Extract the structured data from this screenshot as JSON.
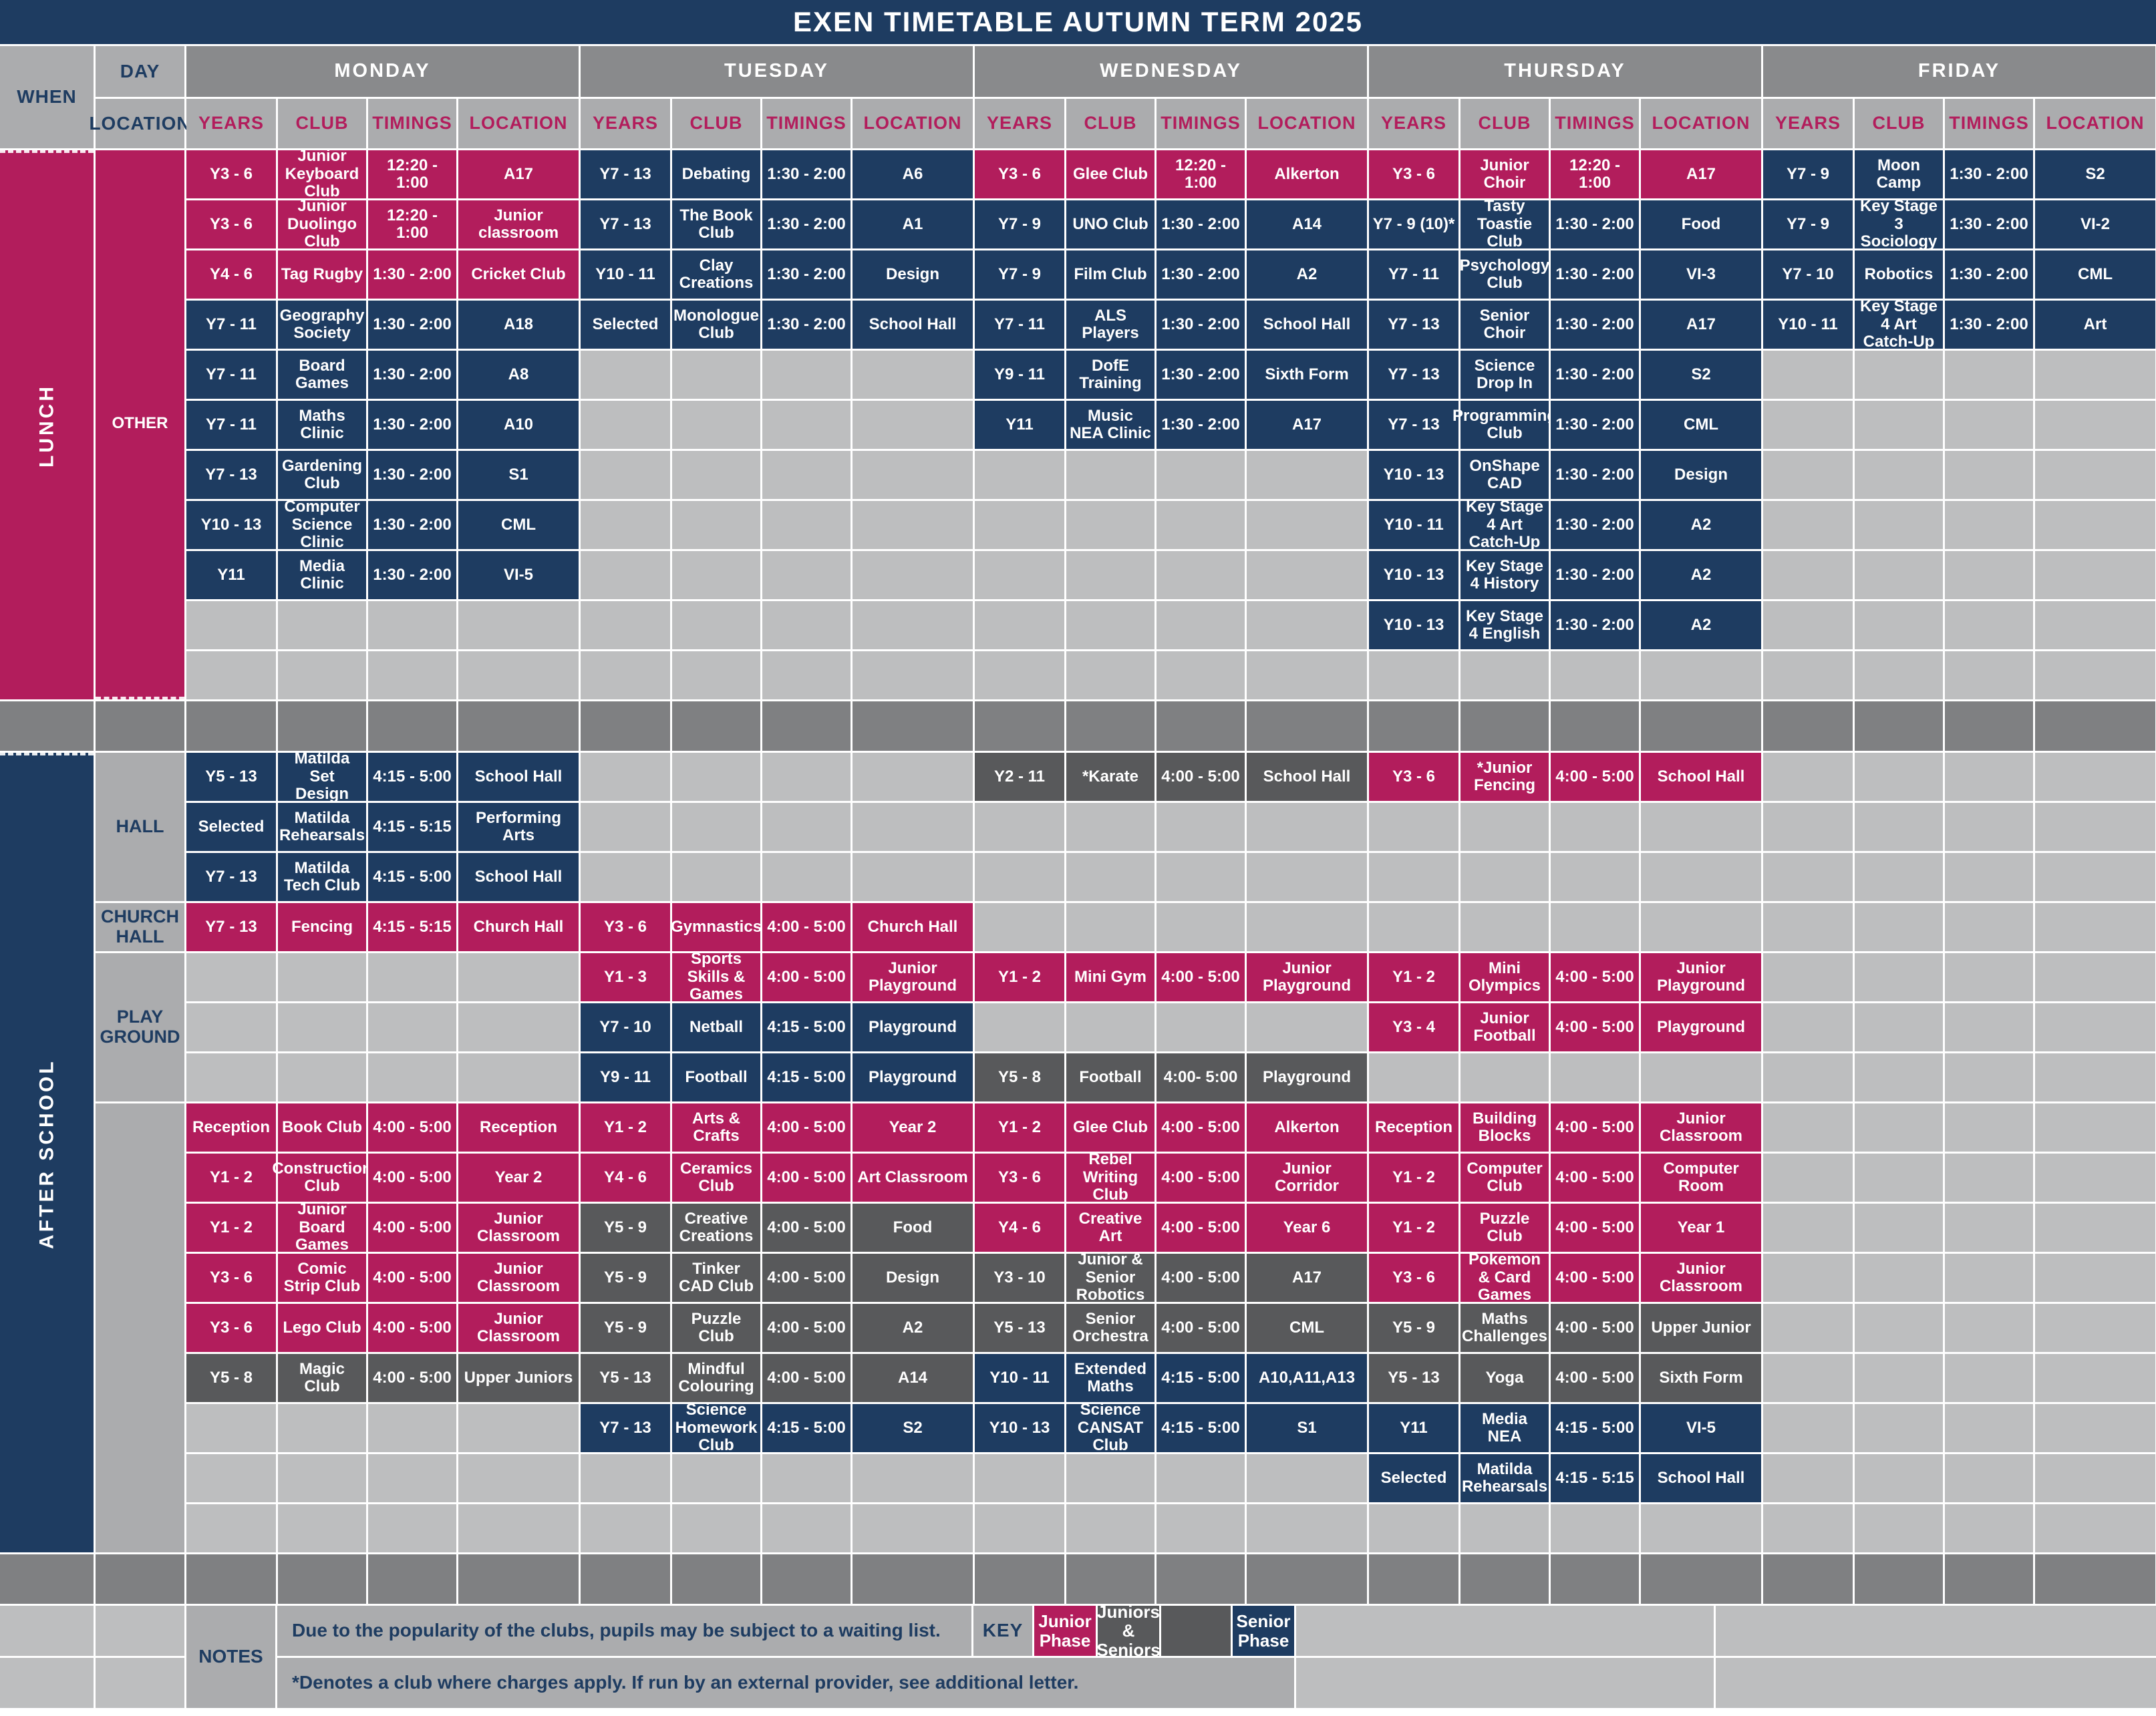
{
  "title": "EXEN TIMETABLE AUTUMN TERM 2025",
  "colors": {
    "navy_senior_phase": "#1e3c61",
    "crimson_junior_phase": "#b21d5c",
    "gray_juniors_and_seniors": "#58595b",
    "light_gray_empty": "#bdbebf",
    "header_gray": "#898a8c",
    "label_gray": "#abacae"
  },
  "headers": {
    "when": "WHEN",
    "day": "DAY",
    "location": "LOCATION",
    "days": [
      "MONDAY",
      "TUESDAY",
      "WEDNESDAY",
      "THURSDAY",
      "FRIDAY"
    ],
    "sub": [
      "YEARS",
      "CLUB",
      "TIMINGS",
      "LOCATION"
    ]
  },
  "sections": [
    {
      "id": "lunch",
      "when_label": "LUNCH",
      "when_phase": "junior",
      "groups": [
        {
          "label": "OTHER",
          "style": "junior",
          "span": 11
        }
      ],
      "entries": [
        {
          "day": 0,
          "row": 0,
          "phase": "junior",
          "years": "Y3 - 6",
          "club": "Junior Keyboard Club",
          "timings": "12:20 - 1:00",
          "location": "A17"
        },
        {
          "day": 0,
          "row": 1,
          "phase": "junior",
          "years": "Y3 - 6",
          "club": "Junior Duolingo Club",
          "timings": "12:20 - 1:00",
          "location": "Junior classroom"
        },
        {
          "day": 0,
          "row": 2,
          "phase": "junior",
          "years": "Y4 - 6",
          "club": "Tag Rugby",
          "timings": "1:30 - 2:00",
          "location": "Cricket Club"
        },
        {
          "day": 0,
          "row": 3,
          "phase": "senior",
          "years": "Y7 - 11",
          "club": "Geography Society",
          "timings": "1:30 - 2:00",
          "location": "A18"
        },
        {
          "day": 0,
          "row": 4,
          "phase": "senior",
          "years": "Y7 - 11",
          "club": "Board Games",
          "timings": "1:30 - 2:00",
          "location": "A8"
        },
        {
          "day": 0,
          "row": 5,
          "phase": "senior",
          "years": "Y7 - 11",
          "club": "Maths Clinic",
          "timings": "1:30 - 2:00",
          "location": "A10"
        },
        {
          "day": 0,
          "row": 6,
          "phase": "senior",
          "years": "Y7 - 13",
          "club": "Gardening Club",
          "timings": "1:30 - 2:00",
          "location": "S1"
        },
        {
          "day": 0,
          "row": 7,
          "phase": "senior",
          "years": "Y10 - 13",
          "club": "Computer Science Clinic",
          "timings": "1:30 - 2:00",
          "location": "CML"
        },
        {
          "day": 0,
          "row": 8,
          "phase": "senior",
          "years": "Y11",
          "club": "Media Clinic",
          "timings": "1:30 - 2:00",
          "location": "VI-5"
        },
        {
          "day": 1,
          "row": 0,
          "phase": "senior",
          "years": "Y7 - 13",
          "club": "Debating",
          "timings": "1:30 - 2:00",
          "location": "A6"
        },
        {
          "day": 1,
          "row": 1,
          "phase": "senior",
          "years": "Y7 - 13",
          "club": "The Book Club",
          "timings": "1:30 - 2:00",
          "location": "A1"
        },
        {
          "day": 1,
          "row": 2,
          "phase": "senior",
          "years": "Y10 - 11",
          "club": "Clay Creations",
          "timings": "1:30 - 2:00",
          "location": "Design"
        },
        {
          "day": 1,
          "row": 3,
          "phase": "senior",
          "years": "Selected",
          "club": "Monologue Club",
          "timings": "1:30 - 2:00",
          "location": "School Hall"
        },
        {
          "day": 2,
          "row": 0,
          "phase": "junior",
          "years": "Y3 - 6",
          "club": "Glee Club",
          "timings": "12:20 - 1:00",
          "location": "Alkerton"
        },
        {
          "day": 2,
          "row": 1,
          "phase": "senior",
          "years": "Y7 - 9",
          "club": "UNO Club",
          "timings": "1:30 - 2:00",
          "location": "A14"
        },
        {
          "day": 2,
          "row": 2,
          "phase": "senior",
          "years": "Y7 - 9",
          "club": "Film Club",
          "timings": "1:30 - 2:00",
          "location": "A2"
        },
        {
          "day": 2,
          "row": 3,
          "phase": "senior",
          "years": "Y7 - 11",
          "club": "ALS Players",
          "timings": "1:30 - 2:00",
          "location": "School Hall"
        },
        {
          "day": 2,
          "row": 4,
          "phase": "senior",
          "years": "Y9 - 11",
          "club": "DofE Training",
          "timings": "1:30 - 2:00",
          "location": "Sixth Form"
        },
        {
          "day": 2,
          "row": 5,
          "phase": "senior",
          "years": "Y11",
          "club": "Music NEA Clinic",
          "timings": "1:30 - 2:00",
          "location": "A17"
        },
        {
          "day": 3,
          "row": 0,
          "phase": "junior",
          "years": "Y3 - 6",
          "club": "Junior Choir",
          "timings": "12:20 - 1:00",
          "location": "A17"
        },
        {
          "day": 3,
          "row": 1,
          "phase": "senior",
          "years": "Y7 - 9 (10)*",
          "club": "Tasty Toastie Club",
          "timings": "1:30 - 2:00",
          "location": "Food"
        },
        {
          "day": 3,
          "row": 2,
          "phase": "senior",
          "years": "Y7 - 11",
          "club": "Psychology Club",
          "timings": "1:30 - 2:00",
          "location": "VI-3"
        },
        {
          "day": 3,
          "row": 3,
          "phase": "senior",
          "years": "Y7 - 13",
          "club": "Senior Choir",
          "timings": "1:30 - 2:00",
          "location": "A17"
        },
        {
          "day": 3,
          "row": 4,
          "phase": "senior",
          "years": "Y7 - 13",
          "club": "Science Drop In",
          "timings": "1:30 - 2:00",
          "location": "S2"
        },
        {
          "day": 3,
          "row": 5,
          "phase": "senior",
          "years": "Y7 - 13",
          "club": "Programming Club",
          "timings": "1:30 - 2:00",
          "location": "CML"
        },
        {
          "day": 3,
          "row": 6,
          "phase": "senior",
          "years": "Y10 - 13",
          "club": "OnShape CAD",
          "timings": "1:30 - 2:00",
          "location": "Design"
        },
        {
          "day": 3,
          "row": 7,
          "phase": "senior",
          "years": "Y10 - 11",
          "club": "Key Stage 4 Art Catch-Up",
          "timings": "1:30 - 2:00",
          "location": "A2"
        },
        {
          "day": 3,
          "row": 8,
          "phase": "senior",
          "years": "Y10 - 13",
          "club": "Key Stage 4 History",
          "timings": "1:30 - 2:00",
          "location": "A2"
        },
        {
          "day": 3,
          "row": 9,
          "phase": "senior",
          "years": "Y10 - 13",
          "club": "Key Stage 4 English",
          "timings": "1:30 - 2:00",
          "location": "A2"
        },
        {
          "day": 4,
          "row": 0,
          "phase": "senior",
          "years": "Y7 - 9",
          "club": "Moon Camp",
          "timings": "1:30 - 2:00",
          "location": "S2"
        },
        {
          "day": 4,
          "row": 1,
          "phase": "senior",
          "years": "Y7 - 9",
          "club": "Key Stage 3 Sociology",
          "timings": "1:30 - 2:00",
          "location": "VI-2"
        },
        {
          "day": 4,
          "row": 2,
          "phase": "senior",
          "years": "Y7 - 10",
          "club": "Robotics",
          "timings": "1:30 - 2:00",
          "location": "CML"
        },
        {
          "day": 4,
          "row": 3,
          "phase": "senior",
          "years": "Y10 - 11",
          "club": "Key Stage 4 Art Catch-Up",
          "timings": "1:30 - 2:00",
          "location": "Art"
        }
      ]
    },
    {
      "id": "after-school",
      "when_label": "AFTER SCHOOL",
      "when_phase": "senior",
      "groups": [
        {
          "label": "HALL",
          "style": "label",
          "span": 3
        },
        {
          "label": "CHURCH HALL",
          "style": "label",
          "span": 1
        },
        {
          "label": "PLAY GROUND",
          "style": "label",
          "span": 3
        },
        {
          "label": "",
          "style": "label",
          "span": 9
        }
      ],
      "entries": [
        {
          "day": 0,
          "row": 0,
          "phase": "senior",
          "years": "Y5 - 13",
          "club": "Matilda Set Design",
          "timings": "4:15 - 5:00",
          "location": "School Hall"
        },
        {
          "day": 0,
          "row": 1,
          "phase": "senior",
          "years": "Selected",
          "club": "Matilda Rehearsals",
          "timings": "4:15 - 5:15",
          "location": "Performing Arts"
        },
        {
          "day": 0,
          "row": 2,
          "phase": "senior",
          "years": "Y7 - 13",
          "club": "Matilda Tech Club",
          "timings": "4:15 - 5:00",
          "location": "School Hall"
        },
        {
          "day": 0,
          "row": 3,
          "phase": "junior",
          "years": "Y7 - 13",
          "club": "Fencing",
          "timings": "4:15 - 5:15",
          "location": "Church Hall"
        },
        {
          "day": 0,
          "row": 7,
          "phase": "junior",
          "years": "Reception",
          "club": "Book Club",
          "timings": "4:00 - 5:00",
          "location": "Reception"
        },
        {
          "day": 0,
          "row": 8,
          "phase": "junior",
          "years": "Y1 - 2",
          "club": "Construction Club",
          "timings": "4:00 - 5:00",
          "location": "Year 2"
        },
        {
          "day": 0,
          "row": 9,
          "phase": "junior",
          "years": "Y1 - 2",
          "club": "Junior Board Games",
          "timings": "4:00 - 5:00",
          "location": "Junior Classroom"
        },
        {
          "day": 0,
          "row": 10,
          "phase": "junior",
          "years": "Y3 - 6",
          "club": "Comic Strip Club",
          "timings": "4:00 - 5:00",
          "location": "Junior Classroom"
        },
        {
          "day": 0,
          "row": 11,
          "phase": "junior",
          "years": "Y3 - 6",
          "club": "Lego Club",
          "timings": "4:00 - 5:00",
          "location": "Junior Classroom"
        },
        {
          "day": 0,
          "row": 12,
          "phase": "both",
          "years": "Y5 - 8",
          "club": "Magic Club",
          "timings": "4:00 - 5:00",
          "location": "Upper Juniors"
        },
        {
          "day": 1,
          "row": 3,
          "phase": "junior",
          "years": "Y3 - 6",
          "club": "Gymnastics",
          "timings": "4:00 - 5:00",
          "location": "Church Hall"
        },
        {
          "day": 1,
          "row": 4,
          "phase": "junior",
          "years": "Y1 - 3",
          "club": "Sports Skills & Games",
          "timings": "4:00 - 5:00",
          "location": "Junior Playground"
        },
        {
          "day": 1,
          "row": 5,
          "phase": "senior",
          "years": "Y7 - 10",
          "club": "Netball",
          "timings": "4:15 - 5:00",
          "location": "Playground"
        },
        {
          "day": 1,
          "row": 6,
          "phase": "senior",
          "years": "Y9 - 11",
          "club": "Football",
          "timings": "4:15 - 5:00",
          "location": "Playground"
        },
        {
          "day": 1,
          "row": 7,
          "phase": "junior",
          "years": "Y1 - 2",
          "club": "Arts & Crafts",
          "timings": "4:00 - 5:00",
          "location": "Year 2"
        },
        {
          "day": 1,
          "row": 8,
          "phase": "junior",
          "years": "Y4 - 6",
          "club": "Ceramics Club",
          "timings": "4:00 - 5:00",
          "location": "Art Classroom"
        },
        {
          "day": 1,
          "row": 9,
          "phase": "both",
          "years": "Y5 - 9",
          "club": "Creative Creations",
          "timings": "4:00 - 5:00",
          "location": "Food"
        },
        {
          "day": 1,
          "row": 10,
          "phase": "both",
          "years": "Y5 - 9",
          "club": "Tinker CAD Club",
          "timings": "4:00 - 5:00",
          "location": "Design"
        },
        {
          "day": 1,
          "row": 11,
          "phase": "both",
          "years": "Y5 - 9",
          "club": "Puzzle Club",
          "timings": "4:00 - 5:00",
          "location": "A2"
        },
        {
          "day": 1,
          "row": 12,
          "phase": "both",
          "years": "Y5 - 13",
          "club": "Mindful Colouring",
          "timings": "4:00 - 5:00",
          "location": "A14"
        },
        {
          "day": 1,
          "row": 13,
          "phase": "senior",
          "years": "Y7 - 13",
          "club": "Science Homework Club",
          "timings": "4:15 - 5:00",
          "location": "S2"
        },
        {
          "day": 2,
          "row": 0,
          "phase": "both",
          "years": "Y2 - 11",
          "club": "*Karate",
          "timings": "4:00 - 5:00",
          "location": "School Hall"
        },
        {
          "day": 2,
          "row": 4,
          "phase": "junior",
          "years": "Y1 - 2",
          "club": "Mini Gym",
          "timings": "4:00 - 5:00",
          "location": "Junior Playground"
        },
        {
          "day": 2,
          "row": 6,
          "phase": "both",
          "years": "Y5 - 8",
          "club": "Football",
          "timings": "4:00- 5:00",
          "location": "Playground"
        },
        {
          "day": 2,
          "row": 7,
          "phase": "junior",
          "years": "Y1 - 2",
          "club": "Glee Club",
          "timings": "4:00 - 5:00",
          "location": "Alkerton"
        },
        {
          "day": 2,
          "row": 8,
          "phase": "junior",
          "years": "Y3 - 6",
          "club": "Rebel Writing Club",
          "timings": "4:00 - 5:00",
          "location": "Junior Corridor"
        },
        {
          "day": 2,
          "row": 9,
          "phase": "junior",
          "years": "Y4 - 6",
          "club": "Creative Art",
          "timings": "4:00 - 5:00",
          "location": "Year 6"
        },
        {
          "day": 2,
          "row": 10,
          "phase": "both",
          "years": "Y3 - 10",
          "club": "Junior & Senior Robotics",
          "timings": "4:00 - 5:00",
          "location": "A17"
        },
        {
          "day": 2,
          "row": 11,
          "phase": "both",
          "years": "Y5 - 13",
          "club": "Senior Orchestra",
          "timings": "4:00 - 5:00",
          "location": "CML"
        },
        {
          "day": 2,
          "row": 12,
          "phase": "senior",
          "years": "Y10 - 11",
          "club": "Extended Maths",
          "timings": "4:15 - 5:00",
          "location": "A10,A11,A13"
        },
        {
          "day": 2,
          "row": 13,
          "phase": "senior",
          "years": "Y10 - 13",
          "club": "Science CANSAT Club",
          "timings": "4:15 - 5:00",
          "location": "S1"
        },
        {
          "day": 3,
          "row": 0,
          "phase": "junior",
          "years": "Y3 - 6",
          "club": "*Junior Fencing",
          "timings": "4:00 - 5:00",
          "location": "School Hall"
        },
        {
          "day": 3,
          "row": 4,
          "phase": "junior",
          "years": "Y1 - 2",
          "club": "Mini Olympics",
          "timings": "4:00 - 5:00",
          "location": "Junior Playground"
        },
        {
          "day": 3,
          "row": 5,
          "phase": "junior",
          "years": "Y3 - 4",
          "club": "Junior Football",
          "timings": "4:00 - 5:00",
          "location": "Playground"
        },
        {
          "day": 3,
          "row": 7,
          "phase": "junior",
          "years": "Reception",
          "club": "Building Blocks",
          "timings": "4:00 - 5:00",
          "location": "Junior Classroom"
        },
        {
          "day": 3,
          "row": 8,
          "phase": "junior",
          "years": "Y1 - 2",
          "club": "Computer Club",
          "timings": "4:00 - 5:00",
          "location": "Computer Room"
        },
        {
          "day": 3,
          "row": 9,
          "phase": "junior",
          "years": "Y1 - 2",
          "club": "Puzzle Club",
          "timings": "4:00 - 5:00",
          "location": "Year 1"
        },
        {
          "day": 3,
          "row": 10,
          "phase": "junior",
          "years": "Y3 - 6",
          "club": "Pokemon & Card Games",
          "timings": "4:00 - 5:00",
          "location": "Junior Classroom"
        },
        {
          "day": 3,
          "row": 11,
          "phase": "both",
          "years": "Y5 - 9",
          "club": "Maths Challenges",
          "timings": "4:00 - 5:00",
          "location": "Upper Junior"
        },
        {
          "day": 3,
          "row": 12,
          "phase": "both",
          "years": "Y5 - 13",
          "club": "Yoga",
          "timings": "4:00 - 5:00",
          "location": "Sixth Form"
        },
        {
          "day": 3,
          "row": 13,
          "phase": "senior",
          "years": "Y11",
          "club": "Media NEA",
          "timings": "4:15 - 5:00",
          "location": "VI-5"
        },
        {
          "day": 3,
          "row": 14,
          "phase": "senior",
          "years": "Selected",
          "club": "Matilda Rehearsals",
          "timings": "4:15 - 5:15",
          "location": "School Hall"
        }
      ]
    }
  ],
  "notes": {
    "label": "NOTES",
    "lines": [
      "Due to the popularity of the clubs, pupils may be subject to a waiting list.",
      "*Denotes a club where charges apply. If run by an external provider, see additional letter."
    ]
  },
  "key": {
    "label": "KEY",
    "items": [
      {
        "label": "Junior Phase",
        "phase": "junior"
      },
      {
        "label": "Juniors & Seniors",
        "phase": "both"
      },
      {
        "label": "",
        "phase": "both"
      },
      {
        "label": "Senior Phase",
        "phase": "senior"
      }
    ]
  }
}
